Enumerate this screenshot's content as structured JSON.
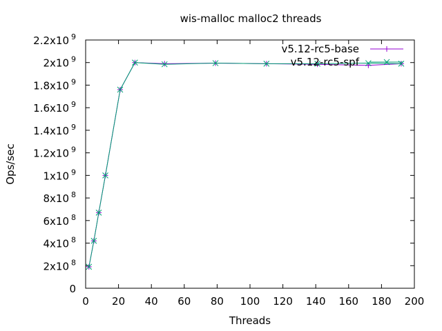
{
  "chart_data": {
    "type": "line",
    "title": "wis-malloc malloc2 threads",
    "xlabel": "Threads",
    "ylabel": "Ops/sec",
    "xlim": [
      0,
      200
    ],
    "ylim": [
      0,
      2200000000
    ],
    "grid": false,
    "legend_position": "top-right",
    "x_ticks": [
      {
        "value": 0,
        "label": "0"
      },
      {
        "value": 20,
        "label": "20"
      },
      {
        "value": 40,
        "label": "40"
      },
      {
        "value": 60,
        "label": "60"
      },
      {
        "value": 80,
        "label": "80"
      },
      {
        "value": 100,
        "label": "100"
      },
      {
        "value": 120,
        "label": "120"
      },
      {
        "value": 140,
        "label": "140"
      },
      {
        "value": 160,
        "label": "160"
      },
      {
        "value": 180,
        "label": "180"
      },
      {
        "value": 200,
        "label": "200"
      }
    ],
    "y_ticks": [
      {
        "value": 0,
        "mant": "0",
        "exp": ""
      },
      {
        "value": 200000000,
        "mant": "2x10",
        "exp": "8"
      },
      {
        "value": 400000000,
        "mant": "4x10",
        "exp": "8"
      },
      {
        "value": 600000000,
        "mant": "6x10",
        "exp": "8"
      },
      {
        "value": 800000000,
        "mant": "8x10",
        "exp": "8"
      },
      {
        "value": 1000000000,
        "mant": "1x10",
        "exp": "9"
      },
      {
        "value": 1200000000,
        "mant": "1.2x10",
        "exp": "9"
      },
      {
        "value": 1400000000,
        "mant": "1.4x10",
        "exp": "9"
      },
      {
        "value": 1600000000,
        "mant": "1.6x10",
        "exp": "9"
      },
      {
        "value": 1800000000,
        "mant": "1.8x10",
        "exp": "9"
      },
      {
        "value": 2000000000,
        "mant": "2x10",
        "exp": "9"
      },
      {
        "value": 2200000000,
        "mant": "2.2x10",
        "exp": "9"
      }
    ],
    "series": [
      {
        "name": "v5.12-rc5-base",
        "color": "#9400d3",
        "marker": "plus",
        "x": [
          2,
          5,
          8,
          12,
          21,
          30,
          48,
          79,
          110,
          141,
          172,
          192
        ],
        "y": [
          190000000,
          420000000,
          670000000,
          1000000000,
          1760000000,
          2000000000,
          1990000000,
          1995000000,
          1990000000,
          1985000000,
          1975000000,
          1990000000
        ]
      },
      {
        "name": "v5.12-rc5-spf",
        "color": "#009e73",
        "marker": "x",
        "x": [
          2,
          5,
          8,
          12,
          21,
          30,
          48,
          79,
          110,
          141,
          172,
          192
        ],
        "y": [
          190000000,
          420000000,
          670000000,
          1000000000,
          1760000000,
          2000000000,
          1985000000,
          1995000000,
          1990000000,
          1990000000,
          1995000000,
          1990000000
        ]
      }
    ]
  }
}
